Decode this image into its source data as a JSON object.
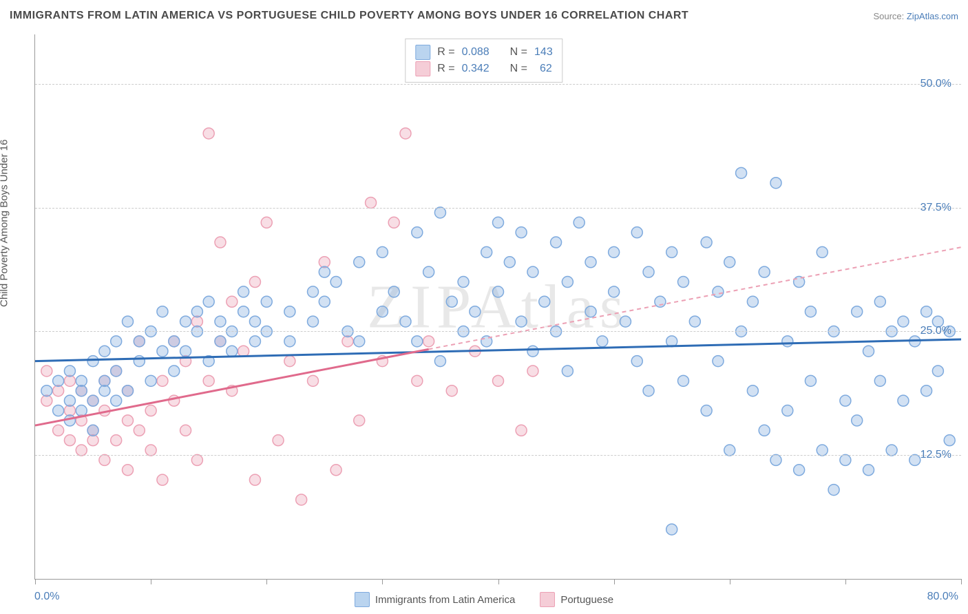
{
  "title": "IMMIGRANTS FROM LATIN AMERICA VS PORTUGUESE CHILD POVERTY AMONG BOYS UNDER 16 CORRELATION CHART",
  "source_prefix": "Source: ",
  "source_name": "ZipAtlas.com",
  "ylabel": "Child Poverty Among Boys Under 16",
  "watermark": "ZIPAtlas",
  "chart": {
    "type": "scatter",
    "background_color": "#ffffff",
    "grid_color": "#cccccc",
    "grid_dash": "4,4",
    "xlim": [
      0,
      80
    ],
    "ylim": [
      0,
      55
    ],
    "x_ticks": [
      0,
      10,
      20,
      30,
      40,
      50,
      60,
      70,
      80
    ],
    "x_tick_labels_shown": {
      "0": "0.0%",
      "80": "80.0%"
    },
    "y_gridlines": [
      12.5,
      25.0,
      37.5,
      50.0
    ],
    "y_tick_labels": [
      "12.5%",
      "25.0%",
      "37.5%",
      "50.0%"
    ],
    "marker_radius": 8,
    "marker_stroke_width": 1.5,
    "line_width_solid": 3,
    "line_width_dashed": 2,
    "series": [
      {
        "name": "Immigrants from Latin America",
        "color_fill": "rgba(126,170,222,0.35)",
        "color_stroke": "#7eaade",
        "swatch_fill": "#bad4ef",
        "swatch_border": "#7eaade",
        "R": "0.088",
        "N": "143",
        "regression": {
          "x1": 0,
          "y1": 22.0,
          "x2": 80,
          "y2": 24.2,
          "color": "#2e6cb5",
          "dashed": false
        },
        "points": [
          [
            1,
            19
          ],
          [
            2,
            17
          ],
          [
            2,
            20
          ],
          [
            3,
            16
          ],
          [
            3,
            18
          ],
          [
            3,
            21
          ],
          [
            4,
            19
          ],
          [
            4,
            20
          ],
          [
            4,
            17
          ],
          [
            5,
            18
          ],
          [
            5,
            22
          ],
          [
            5,
            15
          ],
          [
            6,
            19
          ],
          [
            6,
            23
          ],
          [
            6,
            20
          ],
          [
            7,
            21
          ],
          [
            7,
            18
          ],
          [
            7,
            24
          ],
          [
            8,
            19
          ],
          [
            8,
            26
          ],
          [
            9,
            22
          ],
          [
            9,
            24
          ],
          [
            10,
            20
          ],
          [
            10,
            25
          ],
          [
            11,
            23
          ],
          [
            11,
            27
          ],
          [
            12,
            24
          ],
          [
            12,
            21
          ],
          [
            13,
            26
          ],
          [
            13,
            23
          ],
          [
            14,
            25
          ],
          [
            14,
            27
          ],
          [
            15,
            22
          ],
          [
            15,
            28
          ],
          [
            16,
            24
          ],
          [
            16,
            26
          ],
          [
            17,
            25
          ],
          [
            17,
            23
          ],
          [
            18,
            27
          ],
          [
            18,
            29
          ],
          [
            19,
            24
          ],
          [
            19,
            26
          ],
          [
            20,
            25
          ],
          [
            20,
            28
          ],
          [
            22,
            27
          ],
          [
            22,
            24
          ],
          [
            24,
            29
          ],
          [
            24,
            26
          ],
          [
            25,
            28
          ],
          [
            25,
            31
          ],
          [
            26,
            30
          ],
          [
            27,
            25
          ],
          [
            28,
            24
          ],
          [
            28,
            32
          ],
          [
            30,
            27
          ],
          [
            30,
            33
          ],
          [
            31,
            29
          ],
          [
            32,
            26
          ],
          [
            33,
            35
          ],
          [
            33,
            24
          ],
          [
            34,
            31
          ],
          [
            35,
            22
          ],
          [
            35,
            37
          ],
          [
            36,
            28
          ],
          [
            37,
            30
          ],
          [
            37,
            25
          ],
          [
            38,
            27
          ],
          [
            39,
            24
          ],
          [
            39,
            33
          ],
          [
            40,
            36
          ],
          [
            40,
            29
          ],
          [
            41,
            32
          ],
          [
            42,
            35
          ],
          [
            42,
            26
          ],
          [
            43,
            31
          ],
          [
            43,
            23
          ],
          [
            44,
            28
          ],
          [
            45,
            34
          ],
          [
            45,
            25
          ],
          [
            46,
            30
          ],
          [
            46,
            21
          ],
          [
            47,
            36
          ],
          [
            48,
            27
          ],
          [
            48,
            32
          ],
          [
            49,
            24
          ],
          [
            50,
            29
          ],
          [
            50,
            33
          ],
          [
            51,
            26
          ],
          [
            52,
            35
          ],
          [
            52,
            22
          ],
          [
            53,
            31
          ],
          [
            53,
            19
          ],
          [
            54,
            28
          ],
          [
            55,
            24
          ],
          [
            55,
            33
          ],
          [
            56,
            20
          ],
          [
            56,
            30
          ],
          [
            57,
            26
          ],
          [
            58,
            34
          ],
          [
            58,
            17
          ],
          [
            59,
            22
          ],
          [
            59,
            29
          ],
          [
            60,
            32
          ],
          [
            60,
            13
          ],
          [
            61,
            25
          ],
          [
            61,
            41
          ],
          [
            62,
            19
          ],
          [
            62,
            28
          ],
          [
            63,
            15
          ],
          [
            63,
            31
          ],
          [
            64,
            12
          ],
          [
            64,
            40
          ],
          [
            65,
            24
          ],
          [
            65,
            17
          ],
          [
            66,
            30
          ],
          [
            66,
            11
          ],
          [
            67,
            20
          ],
          [
            67,
            27
          ],
          [
            68,
            13
          ],
          [
            68,
            33
          ],
          [
            69,
            9
          ],
          [
            69,
            25
          ],
          [
            70,
            18
          ],
          [
            70,
            12
          ],
          [
            71,
            27
          ],
          [
            71,
            16
          ],
          [
            72,
            23
          ],
          [
            72,
            11
          ],
          [
            73,
            20
          ],
          [
            73,
            28
          ],
          [
            74,
            13
          ],
          [
            74,
            25
          ],
          [
            75,
            18
          ],
          [
            75,
            26
          ],
          [
            76,
            12
          ],
          [
            76,
            24
          ],
          [
            77,
            19
          ],
          [
            77,
            27
          ],
          [
            78,
            26
          ],
          [
            78,
            21
          ],
          [
            79,
            25
          ],
          [
            79,
            14
          ],
          [
            55,
            5
          ]
        ]
      },
      {
        "name": "Portuguese",
        "color_fill": "rgba(236,160,180,0.35)",
        "color_stroke": "#eca0b4",
        "swatch_fill": "#f5cdd7",
        "swatch_border": "#eca0b4",
        "R": "0.342",
        "N": "62",
        "regression_solid": {
          "x1": 0,
          "y1": 15.5,
          "x2": 34,
          "y2": 23.2,
          "color": "#e06a8c"
        },
        "regression_dashed": {
          "x1": 34,
          "y1": 23.2,
          "x2": 80,
          "y2": 33.5,
          "color": "#eca0b4"
        },
        "points": [
          [
            1,
            18
          ],
          [
            1,
            21
          ],
          [
            2,
            15
          ],
          [
            2,
            19
          ],
          [
            3,
            14
          ],
          [
            3,
            17
          ],
          [
            3,
            20
          ],
          [
            4,
            13
          ],
          [
            4,
            16
          ],
          [
            4,
            19
          ],
          [
            5,
            15
          ],
          [
            5,
            18
          ],
          [
            5,
            14
          ],
          [
            6,
            12
          ],
          [
            6,
            17
          ],
          [
            6,
            20
          ],
          [
            7,
            14
          ],
          [
            7,
            21
          ],
          [
            8,
            16
          ],
          [
            8,
            19
          ],
          [
            8,
            11
          ],
          [
            9,
            15
          ],
          [
            9,
            24
          ],
          [
            10,
            17
          ],
          [
            10,
            13
          ],
          [
            11,
            10
          ],
          [
            11,
            20
          ],
          [
            12,
            18
          ],
          [
            12,
            24
          ],
          [
            13,
            15
          ],
          [
            13,
            22
          ],
          [
            14,
            12
          ],
          [
            14,
            26
          ],
          [
            15,
            20
          ],
          [
            15,
            45
          ],
          [
            16,
            24
          ],
          [
            16,
            34
          ],
          [
            17,
            19
          ],
          [
            17,
            28
          ],
          [
            18,
            23
          ],
          [
            19,
            10
          ],
          [
            19,
            30
          ],
          [
            20,
            36
          ],
          [
            21,
            14
          ],
          [
            22,
            22
          ],
          [
            23,
            8
          ],
          [
            24,
            20
          ],
          [
            25,
            32
          ],
          [
            26,
            11
          ],
          [
            27,
            24
          ],
          [
            28,
            16
          ],
          [
            29,
            38
          ],
          [
            30,
            22
          ],
          [
            31,
            36
          ],
          [
            32,
            45
          ],
          [
            33,
            20
          ],
          [
            34,
            24
          ],
          [
            36,
            19
          ],
          [
            38,
            23
          ],
          [
            40,
            20
          ],
          [
            42,
            15
          ],
          [
            43,
            21
          ]
        ]
      }
    ]
  },
  "colors": {
    "title_text": "#4a4a4a",
    "axis_text": "#4a7db8",
    "label_text": "#555555",
    "source_text": "#888888",
    "link": "#4a7db8",
    "axis_line": "#999999"
  },
  "typography": {
    "title_fontsize": 16,
    "axis_label_fontsize": 16,
    "legend_fontsize": 15,
    "watermark_fontsize": 90
  }
}
